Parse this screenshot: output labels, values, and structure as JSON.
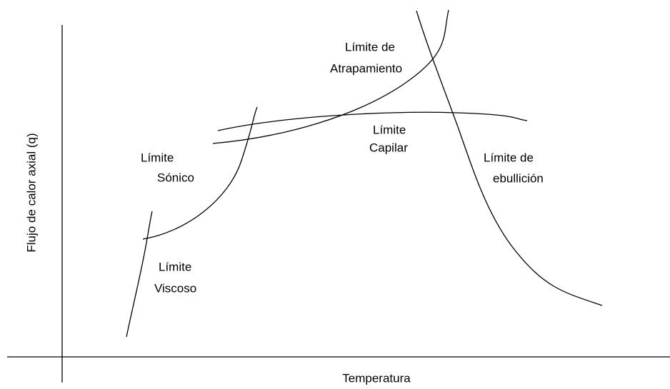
{
  "axes": {
    "y_label": "Flujo de calor axial  (q)",
    "x_label": "Temperatura"
  },
  "labels": [
    {
      "lines": [
        "Límite de",
        "Atrapamiento"
      ]
    },
    {
      "lines": [
        "Límite",
        "Capilar"
      ]
    },
    {
      "lines": [
        "Límite de",
        "ebullición"
      ]
    },
    {
      "lines": [
        "Límite",
        "Sónico"
      ]
    },
    {
      "lines": [
        "Límite",
        "Viscoso"
      ]
    }
  ]
}
